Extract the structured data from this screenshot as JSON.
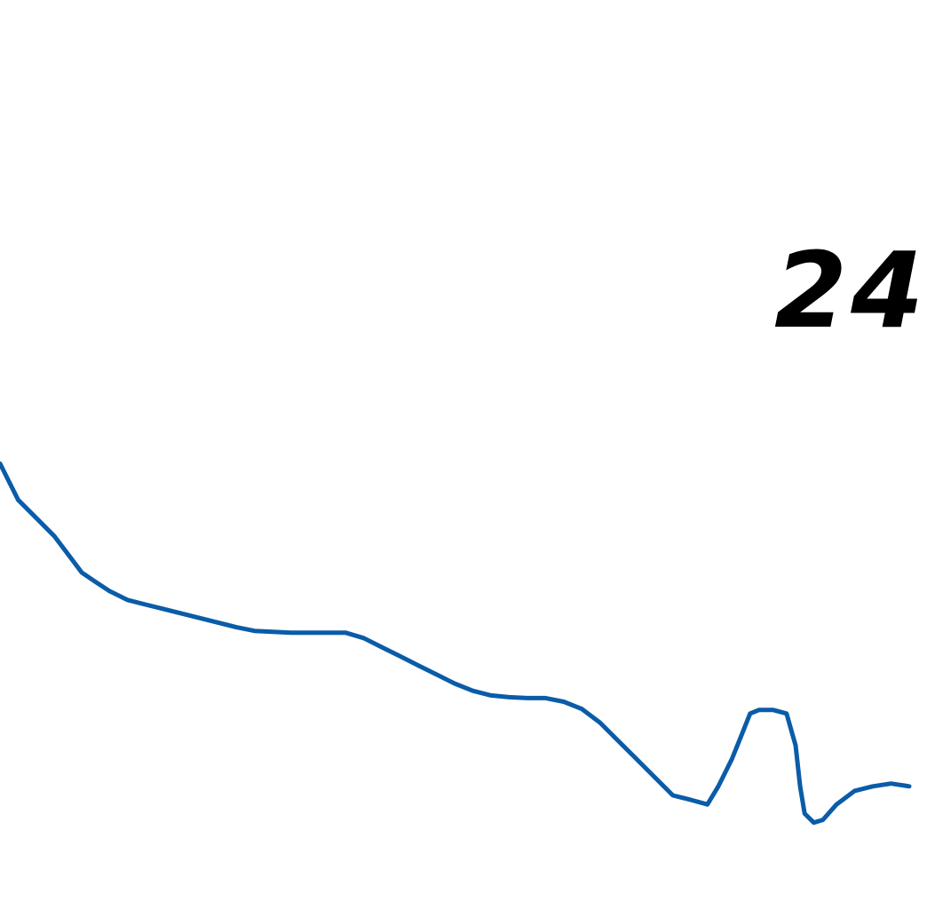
{
  "chart_data": {
    "type": "line",
    "title": "",
    "xlabel": "",
    "ylabel": "",
    "annotation": "24",
    "xlim": [
      0,
      100
    ],
    "ylim": [
      0,
      100
    ],
    "grid": false,
    "series": [
      {
        "color": "#0a5ca8",
        "x": [
          0,
          2,
          4,
          6,
          7.5,
          9,
          10.5,
          12,
          14,
          16,
          18,
          20,
          22,
          24,
          26,
          28,
          30,
          32,
          34,
          36,
          38,
          40,
          42,
          44,
          46,
          48,
          50,
          52,
          54,
          56,
          58,
          60,
          62,
          64,
          66,
          68,
          70,
          72,
          74,
          76,
          77.8,
          79,
          80.5,
          81.5,
          82.5,
          83.5,
          85,
          86.5,
          87.5,
          88,
          88.5,
          89.5,
          90.5,
          92,
          94,
          96,
          98,
          100
        ],
        "y": [
          49,
          45,
          43,
          41,
          39,
          37,
          36,
          35,
          34,
          33.5,
          33,
          32.5,
          32,
          31.5,
          31,
          30.6,
          30.5,
          30.4,
          30.4,
          30.4,
          30.4,
          29.8,
          28.8,
          27.8,
          26.8,
          25.8,
          24.8,
          24,
          23.5,
          23.3,
          23.2,
          23.2,
          22.8,
          22,
          20.5,
          18.5,
          16.5,
          14.5,
          12.5,
          12,
          11.5,
          13.5,
          16.5,
          19,
          21.5,
          21.9,
          21.9,
          21.5,
          18,
          13.5,
          10.5,
          9.5,
          9.8,
          11.5,
          13,
          13.5,
          13.8,
          13.5
        ]
      }
    ]
  }
}
